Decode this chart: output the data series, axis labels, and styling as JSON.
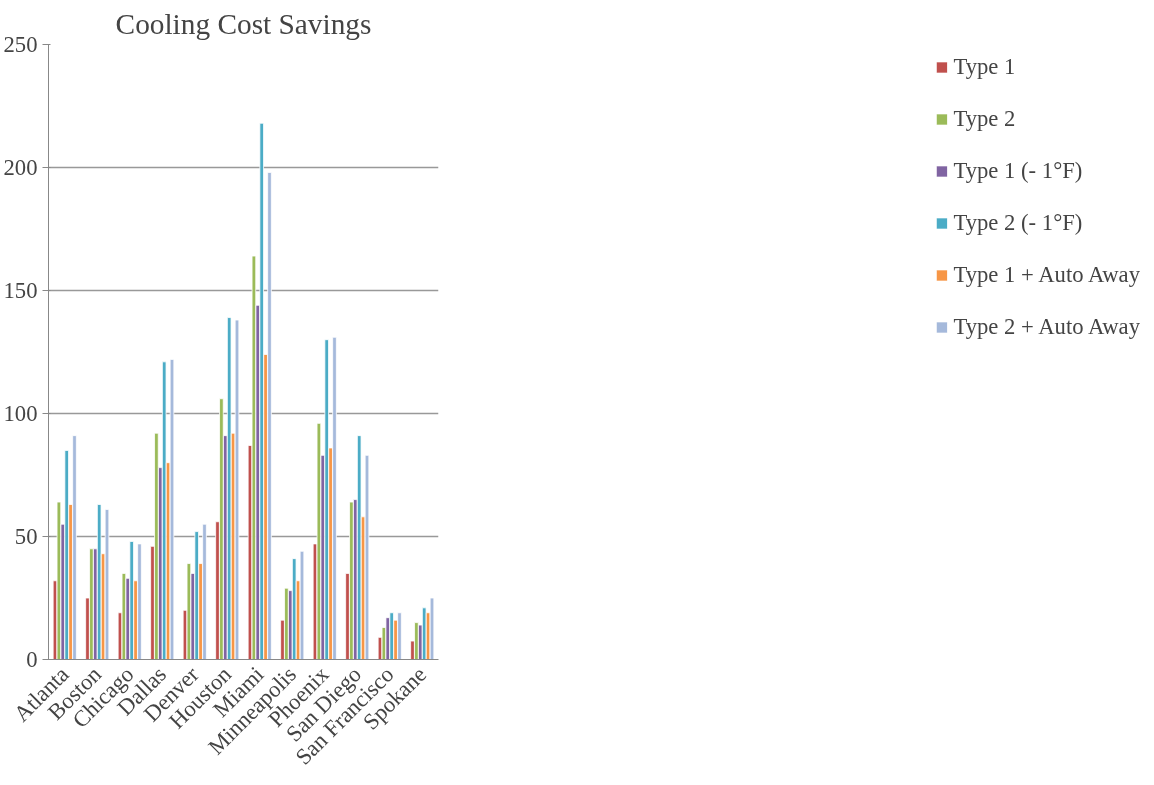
{
  "chart_data": {
    "type": "bar",
    "title": "Cooling Cost Savings",
    "categories": [
      "Atlanta",
      "Boston",
      "Chicago",
      "Dallas",
      "Denver",
      "Houston",
      "Miami",
      "Minneapolis",
      "Phoenix",
      "San Diego",
      "San Francisco",
      "Spokane"
    ],
    "series": [
      {
        "name": "Type 1",
        "color": "#c0504d",
        "values": [
          32,
          25,
          19,
          46,
          20,
          56,
          87,
          16,
          47,
          35,
          9,
          7.5
        ]
      },
      {
        "name": "Type 2",
        "color": "#9bbb59",
        "values": [
          64,
          45,
          35,
          92,
          39,
          106,
          164,
          29,
          96,
          64,
          13,
          15
        ]
      },
      {
        "name": "Type 1 (- 1°F)",
        "color": "#8064a2",
        "values": [
          55,
          45,
          33,
          78,
          35,
          91,
          144,
          28,
          83,
          65,
          17,
          14
        ]
      },
      {
        "name": "Type 2 (- 1°F)",
        "color": "#4bacc6",
        "values": [
          85,
          63,
          48,
          121,
          52,
          139,
          218,
          41,
          130,
          91,
          19,
          21
        ]
      },
      {
        "name": "Type 1 + Auto Away",
        "color": "#f79646",
        "values": [
          63,
          43,
          32,
          80,
          39,
          92,
          124,
          32,
          86,
          58,
          16,
          19
        ]
      },
      {
        "name": "Type 2 + Auto Away",
        "color": "#a5b9db",
        "values": [
          91,
          61,
          47,
          122,
          55,
          138,
          198,
          44,
          131,
          83,
          19,
          25
        ]
      }
    ],
    "ylim": [
      0,
      250
    ],
    "yticks": [
      0,
      50,
      100,
      150,
      200,
      250
    ],
    "grid": "y",
    "legend": "right"
  }
}
